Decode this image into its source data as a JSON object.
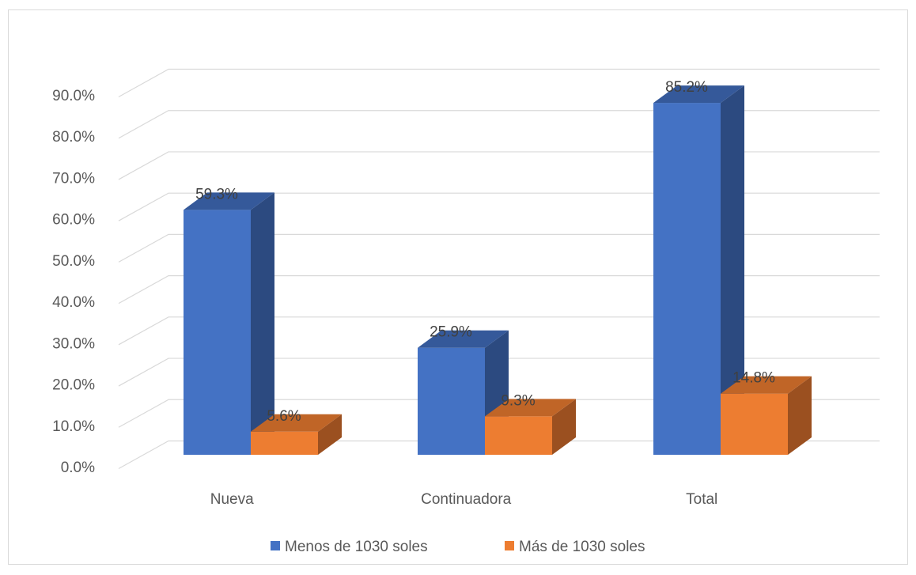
{
  "chart_data": {
    "type": "bar",
    "categories": [
      "Nueva",
      "Continuadora",
      "Total"
    ],
    "series": [
      {
        "name": "Menos de 1030 soles",
        "values": [
          59.3,
          25.9,
          85.2
        ],
        "labels": [
          "59.3%",
          "25.9%",
          "85.2%"
        ],
        "color": "#4472c4",
        "side_color": "#2c4a80",
        "top_color": "#35599a"
      },
      {
        "name": "Más de 1030 soles",
        "values": [
          5.6,
          9.3,
          14.8
        ],
        "labels": [
          "5.6%",
          "9.3%",
          "14.8%"
        ],
        "color": "#ed7d31",
        "side_color": "#9b5020",
        "top_color": "#c06527"
      }
    ],
    "ylim": [
      0,
      90
    ],
    "yticks": [
      0,
      10,
      20,
      30,
      40,
      50,
      60,
      70,
      80,
      90
    ],
    "ytick_labels": [
      "0.0%",
      "10.0%",
      "20.0%",
      "30.0%",
      "40.0%",
      "50.0%",
      "60.0%",
      "70.0%",
      "80.0%",
      "90.0%"
    ],
    "grid": true,
    "legend": "bottom",
    "style": "3d-clustered-column"
  }
}
